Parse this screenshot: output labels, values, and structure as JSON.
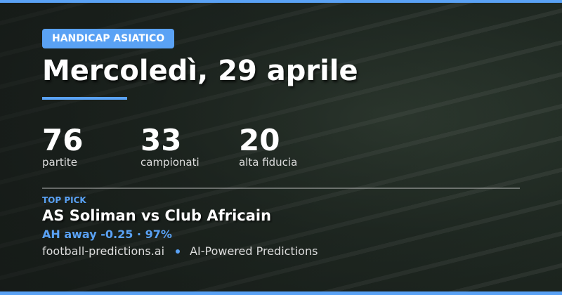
{
  "accent": "#5aa2f5",
  "badge": "HANDICAP ASIATICO",
  "title": "Mercoledì, 29 aprile",
  "stats": [
    {
      "value": "76",
      "label": "partite"
    },
    {
      "value": "33",
      "label": "campionati"
    },
    {
      "value": "20",
      "label": "alta fiducia"
    }
  ],
  "top_pick": {
    "label": "TOP PICK",
    "match": "AS Soliman vs Club Africain",
    "pick": "AH away -0.25 · 97%"
  },
  "footer": {
    "site": "football-predictions.ai",
    "tagline": "AI-Powered Predictions"
  }
}
